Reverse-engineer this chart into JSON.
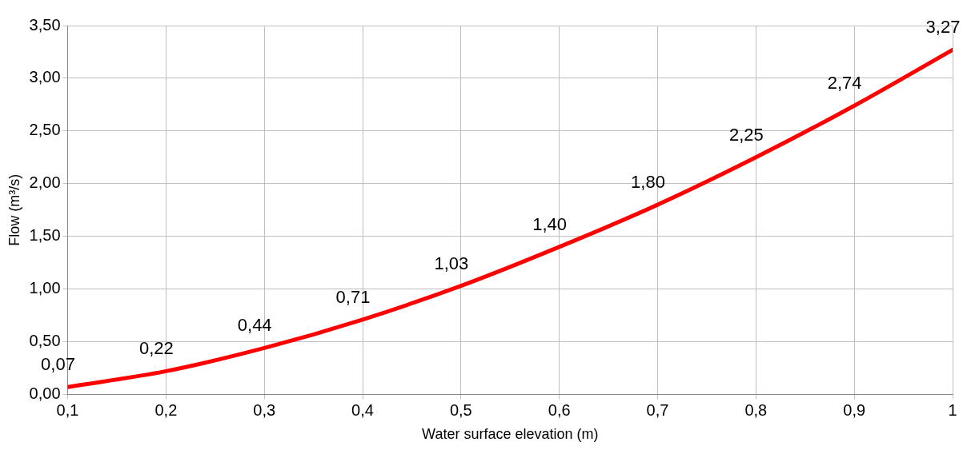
{
  "chart_data": {
    "type": "line",
    "xlabel": "Water surface elevation (m)",
    "ylabel": "Flow (m³/s)",
    "x": [
      0.1,
      0.2,
      0.3,
      0.4,
      0.5,
      0.6,
      0.7,
      0.8,
      0.9,
      1
    ],
    "series": [
      {
        "color": "#ff0000",
        "values": [
          0.07,
          0.22,
          0.44,
          0.71,
          1.03,
          1.4,
          1.8,
          2.25,
          2.74,
          3.27
        ],
        "value_labels": [
          "0,07",
          "0,22",
          "0,44",
          "0,71",
          "1,03",
          "1,40",
          "1,80",
          "2,25",
          "2,74",
          "3,27"
        ]
      }
    ],
    "xlim": [
      0.1,
      1
    ],
    "xticks": [
      {
        "value": 0.1,
        "label": "0,1"
      },
      {
        "value": 0.2,
        "label": "0,2"
      },
      {
        "value": 0.3,
        "label": "0,3"
      },
      {
        "value": 0.4,
        "label": "0,4"
      },
      {
        "value": 0.5,
        "label": "0,5"
      },
      {
        "value": 0.6,
        "label": "0,6"
      },
      {
        "value": 0.7,
        "label": "0,7"
      },
      {
        "value": 0.8,
        "label": "0,8"
      },
      {
        "value": 0.9,
        "label": "0,9"
      },
      {
        "value": 1,
        "label": "1"
      }
    ],
    "ylim": [
      0,
      3.5
    ],
    "yticks": [
      {
        "value": 0,
        "label": "0,00"
      },
      {
        "value": 0.5,
        "label": "0,50"
      },
      {
        "value": 1,
        "label": "1,00"
      },
      {
        "value": 1.5,
        "label": "1,50"
      },
      {
        "value": 2,
        "label": "2,00"
      },
      {
        "value": 2.5,
        "label": "2,50"
      },
      {
        "value": 3,
        "label": "3,00"
      },
      {
        "value": 3.5,
        "label": "3,50"
      }
    ],
    "grid": true,
    "marker": "none",
    "line_style": "solid"
  }
}
